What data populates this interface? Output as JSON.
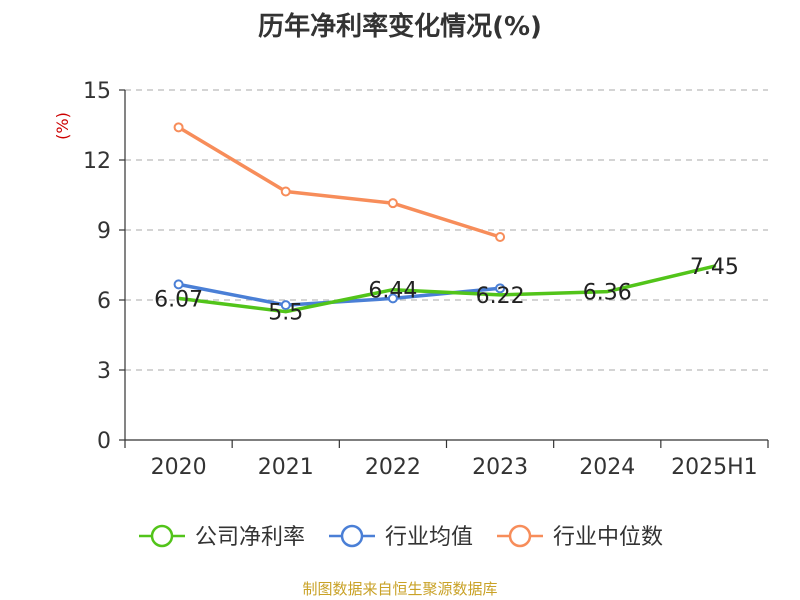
{
  "chart_data": {
    "type": "line",
    "title": "历年净利率变化情况(%)",
    "ylabel": "(%)",
    "xlabel": "",
    "categories": [
      "2020",
      "2021",
      "2022",
      "2023",
      "2024",
      "2025H1"
    ],
    "ylim": [
      0,
      15
    ],
    "yticks": [
      0,
      3,
      6,
      9,
      12,
      15
    ],
    "grid": true,
    "legend_position": "bottom",
    "series": [
      {
        "name": "公司净利率",
        "color": "#52c41a",
        "values": [
          6.07,
          5.5,
          6.44,
          6.22,
          6.36,
          7.45
        ],
        "labels": [
          "6.07",
          "5.5",
          "6.44",
          "6.22",
          "6.36",
          "7.45"
        ]
      },
      {
        "name": "行业均值",
        "color": "#4a7fd6",
        "values": [
          6.67,
          5.78,
          6.07,
          6.5,
          null,
          null
        ]
      },
      {
        "name": "行业中位数",
        "color": "#f78d5a",
        "values": [
          13.4,
          10.65,
          10.15,
          8.7,
          null,
          null
        ]
      }
    ]
  },
  "source_text": "制图数据来自恒生聚源数据库"
}
